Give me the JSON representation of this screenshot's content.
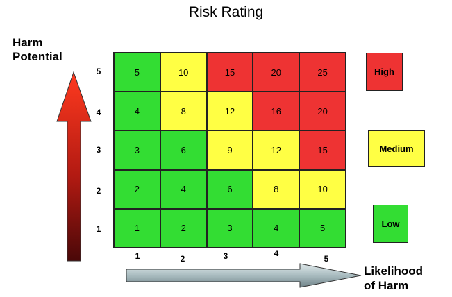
{
  "title": "Risk Rating",
  "y_axis_title": [
    "Harm",
    "Potential"
  ],
  "x_axis_title": [
    "Likelihood",
    "of Harm"
  ],
  "y_tick_labels": [
    "5",
    "4",
    "3",
    "2",
    "1"
  ],
  "x_tick_labels": [
    "1",
    "2",
    "3",
    "4",
    "5"
  ],
  "colors": {
    "high": "#ee3333",
    "medium": "#ffff44",
    "low": "#33dd33"
  },
  "matrix": [
    [
      {
        "v": "5",
        "c": "low"
      },
      {
        "v": "10",
        "c": "medium"
      },
      {
        "v": "15",
        "c": "high"
      },
      {
        "v": "20",
        "c": "high"
      },
      {
        "v": "25",
        "c": "high"
      }
    ],
    [
      {
        "v": "4",
        "c": "low"
      },
      {
        "v": "8",
        "c": "medium"
      },
      {
        "v": "12",
        "c": "medium"
      },
      {
        "v": "16",
        "c": "high"
      },
      {
        "v": "20",
        "c": "high"
      }
    ],
    [
      {
        "v": "3",
        "c": "low"
      },
      {
        "v": "6",
        "c": "low"
      },
      {
        "v": "9",
        "c": "medium"
      },
      {
        "v": "12",
        "c": "medium"
      },
      {
        "v": "15",
        "c": "high"
      }
    ],
    [
      {
        "v": "2",
        "c": "low"
      },
      {
        "v": "4",
        "c": "low"
      },
      {
        "v": "6",
        "c": "low"
      },
      {
        "v": "8",
        "c": "medium"
      },
      {
        "v": "10",
        "c": "medium"
      }
    ],
    [
      {
        "v": "1",
        "c": "low"
      },
      {
        "v": "2",
        "c": "low"
      },
      {
        "v": "3",
        "c": "low"
      },
      {
        "v": "4",
        "c": "low"
      },
      {
        "v": "5",
        "c": "low"
      }
    ]
  ],
  "legend": [
    {
      "label": "High",
      "c": "high"
    },
    {
      "label": "Medium",
      "c": "medium"
    },
    {
      "label": "Low",
      "c": "low"
    }
  ]
}
